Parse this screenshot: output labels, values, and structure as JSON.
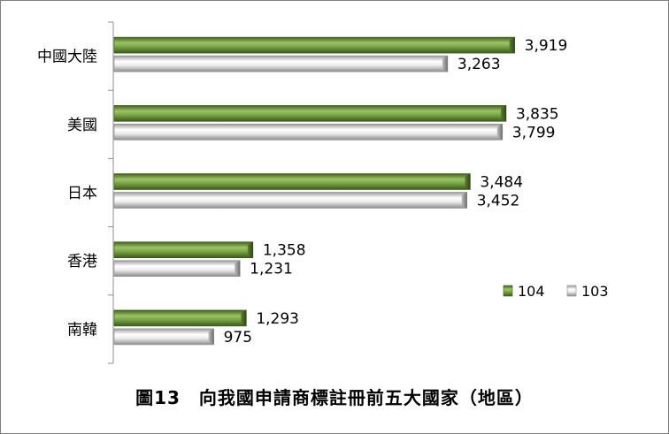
{
  "chart_data": {
    "type": "bar",
    "orientation": "horizontal",
    "title": "圖13　向我國申請商標註冊前五大國家（地區）",
    "categories": [
      "中國大陸",
      "美國",
      "日本",
      "香港",
      "南韓"
    ],
    "series": [
      {
        "name": "104",
        "values": [
          3919,
          3835,
          3484,
          1358,
          1293
        ],
        "value_labels": [
          "3,919",
          "3,835",
          "3,484",
          "1,358",
          "1,293"
        ],
        "color": "#6f9a3c"
      },
      {
        "name": "103",
        "values": [
          3263,
          3799,
          3452,
          1231,
          975
        ],
        "value_labels": [
          "3,263",
          "3,799",
          "3,452",
          "1,231",
          "975"
        ],
        "color": "#d9d9d9"
      }
    ],
    "xlim": [
      0,
      4500
    ],
    "grid": false,
    "legend_position": "right"
  }
}
